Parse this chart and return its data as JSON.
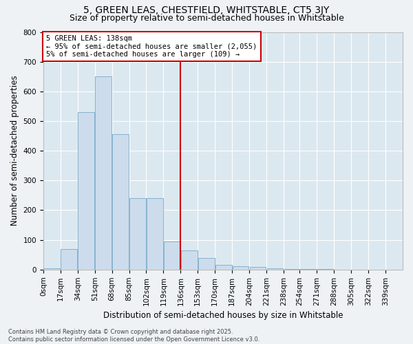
{
  "title_line1": "5, GREEN LEAS, CHESTFIELD, WHITSTABLE, CT5 3JY",
  "title_line2": "Size of property relative to semi-detached houses in Whitstable",
  "xlabel": "Distribution of semi-detached houses by size in Whitstable",
  "ylabel": "Number of semi-detached properties",
  "categories": [
    "0sqm",
    "17sqm",
    "34sqm",
    "51sqm",
    "68sqm",
    "85sqm",
    "102sqm",
    "119sqm",
    "136sqm",
    "153sqm",
    "170sqm",
    "187sqm",
    "204sqm",
    "221sqm",
    "238sqm",
    "254sqm",
    "271sqm",
    "288sqm",
    "305sqm",
    "322sqm",
    "339sqm"
  ],
  "bin_edges": [
    0,
    17,
    34,
    51,
    68,
    85,
    102,
    119,
    136,
    153,
    170,
    187,
    204,
    221,
    238,
    254,
    271,
    288,
    305,
    322,
    339
  ],
  "values": [
    5,
    70,
    530,
    650,
    455,
    240,
    240,
    95,
    65,
    40,
    15,
    12,
    10,
    5,
    2,
    1,
    1,
    0,
    0,
    0,
    0
  ],
  "bar_color": "#ccdcec",
  "bar_edge_color": "#7aaac8",
  "bg_color": "#dce8f0",
  "grid_color": "#ffffff",
  "fig_bg_color": "#eef2f5",
  "vline_x": 136,
  "vline_color": "#cc0000",
  "annotation_text": "5 GREEN LEAS: 138sqm\n← 95% of semi-detached houses are smaller (2,055)\n5% of semi-detached houses are larger (109) →",
  "annotation_box_edgecolor": "#cc0000",
  "ylim": [
    0,
    800
  ],
  "yticks": [
    0,
    100,
    200,
    300,
    400,
    500,
    600,
    700,
    800
  ],
  "xlim_max": 356,
  "footnote": "Contains HM Land Registry data © Crown copyright and database right 2025.\nContains public sector information licensed under the Open Government Licence v3.0.",
  "title_fontsize": 10,
  "subtitle_fontsize": 9,
  "axis_label_fontsize": 8.5,
  "tick_fontsize": 7.5,
  "annot_fontsize": 7.5,
  "footnote_fontsize": 6
}
